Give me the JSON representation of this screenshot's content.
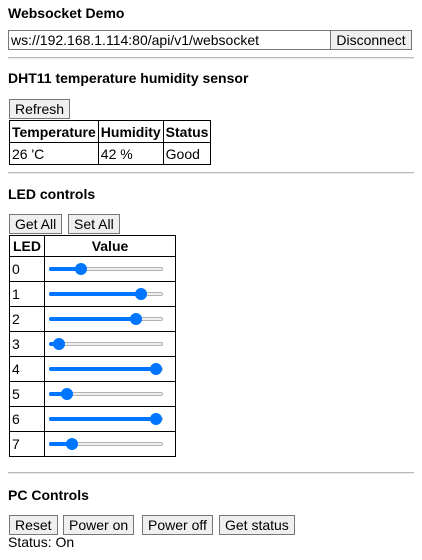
{
  "websocket": {
    "heading": "Websocket Demo",
    "url": "ws://192.168.1.114:80/api/v1/websocket",
    "disconnect_label": "Disconnect"
  },
  "dht": {
    "heading": "DHT11 temperature humidity sensor",
    "refresh_label": "Refresh",
    "headers": [
      "Temperature",
      "Humidity",
      "Status"
    ],
    "values": [
      "26 'C",
      "42 %",
      "Good"
    ]
  },
  "led": {
    "heading": "LED controls",
    "get_all_label": "Get All",
    "set_all_label": "Set All",
    "col_led": "LED",
    "col_value": "Value",
    "rows": [
      {
        "id": "0",
        "level": 0.25
      },
      {
        "id": "1",
        "level": 0.84
      },
      {
        "id": "2",
        "level": 0.79
      },
      {
        "id": "3",
        "level": 0.04
      },
      {
        "id": "4",
        "level": 0.99
      },
      {
        "id": "5",
        "level": 0.12
      },
      {
        "id": "6",
        "level": 0.99
      },
      {
        "id": "7",
        "level": 0.17
      }
    ],
    "accent_color": "#0075ff"
  },
  "pc": {
    "heading": "PC Controls",
    "reset_label": "Reset",
    "power_on_label": "Power on",
    "power_off_label": "Power off",
    "get_status_label": "Get status",
    "status_text": "Status: On"
  }
}
